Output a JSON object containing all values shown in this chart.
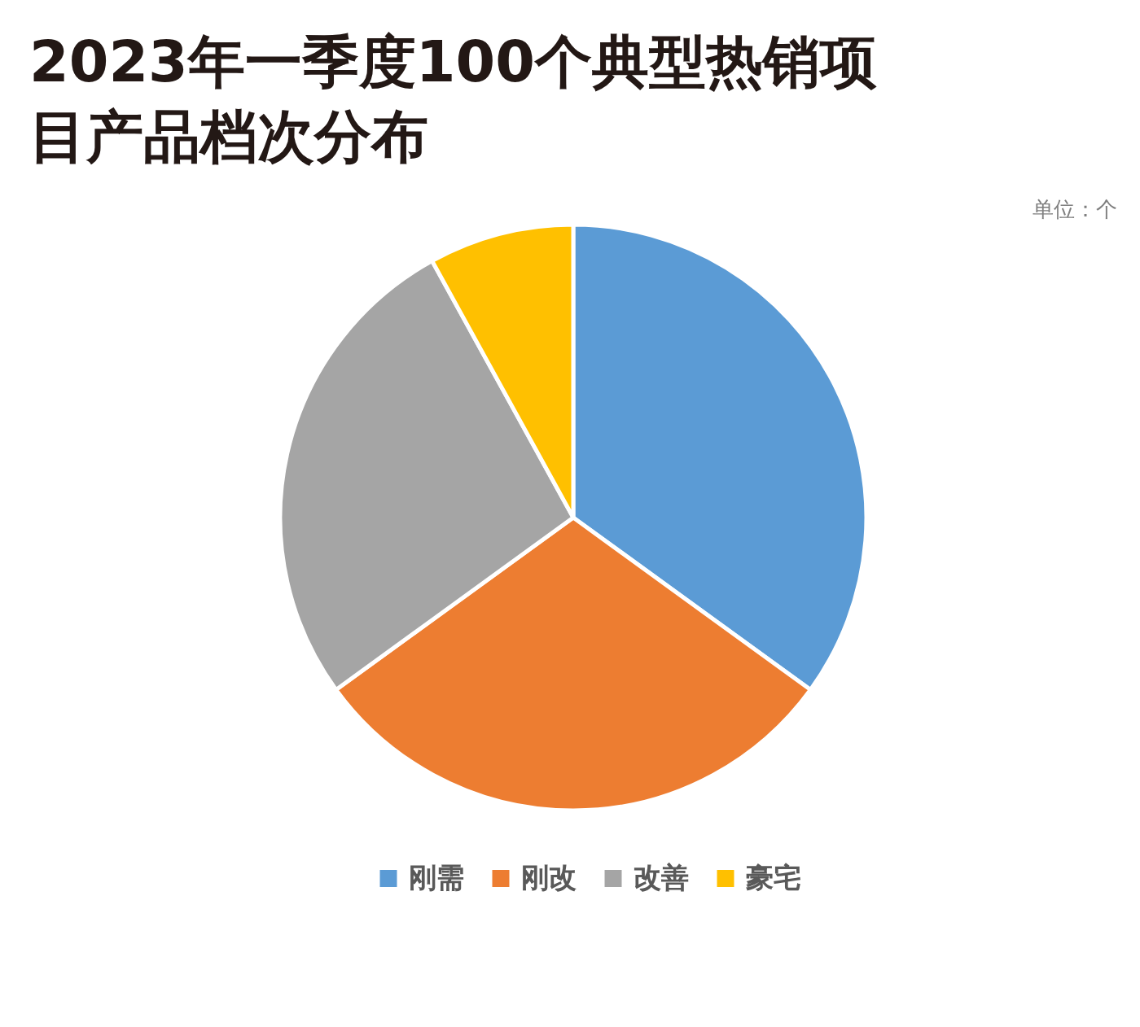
{
  "chart_data": {
    "type": "pie",
    "title": "2023年一季度100个典型热销项目产品档次分布",
    "categories": [
      "刚需",
      "刚改",
      "改善",
      "豪宅"
    ],
    "values": [
      35,
      30,
      27,
      8
    ],
    "colors": [
      "#5b9bd5",
      "#ed7d31",
      "#a5a5a5",
      "#ffc000"
    ],
    "legend": "bottom",
    "annotations": [
      "单位：个"
    ]
  }
}
